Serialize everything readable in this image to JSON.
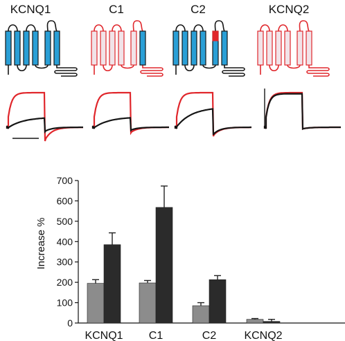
{
  "headers": [
    "KCNQ1",
    "C1",
    "C2",
    "KCNQ2"
  ],
  "colors": {
    "blue": "#2a9fd6",
    "red": "#e0262b",
    "black": "#151515",
    "pink_fill": "#f1e3e8",
    "bar_light": "#8c8c8c",
    "bar_dark": "#2b2b2b"
  },
  "topology": [
    {
      "construct": "KCNQ1",
      "segments": [
        "blue",
        "blue",
        "blue",
        "blue",
        "blue",
        "blue"
      ],
      "loops": "black",
      "tail": "black"
    },
    {
      "construct": "C1",
      "segments": [
        "pink",
        "pink",
        "pink",
        "pink",
        "pink",
        "blue"
      ],
      "loops": "red",
      "tail": "red"
    },
    {
      "construct": "C2",
      "segments": [
        "blue",
        "blue",
        "blue",
        "blue",
        "mixed",
        "blue"
      ],
      "loops": "black",
      "tail": "black"
    },
    {
      "construct": "KCNQ2",
      "segments": [
        "pink",
        "pink",
        "pink",
        "pink",
        "pink",
        "pink"
      ],
      "loops": "red",
      "tail": "red"
    }
  ],
  "traces": [
    {
      "construct": "KCNQ1",
      "black_rel": 0.32,
      "red_rel": 1.0,
      "tail_black": 0.22,
      "tail_red": 0.9,
      "scale_bar": true
    },
    {
      "construct": "C1",
      "black_rel": 0.33,
      "red_rel": 1.0,
      "tail_black": 0.12,
      "tail_red": 0.3,
      "scale_bar": false
    },
    {
      "construct": "C2",
      "black_rel": 0.6,
      "red_rel": 1.0,
      "tail_black": 0.45,
      "tail_red": 0.55,
      "scale_bar": false
    },
    {
      "construct": "KCNQ2",
      "black_rel": 0.97,
      "red_rel": 1.0,
      "tail_black": 0.02,
      "tail_red": 0.02,
      "scale_bar": false
    }
  ],
  "chart_data": {
    "type": "bar",
    "categories": [
      "KCNQ1",
      "C1",
      "C2",
      "KCNQ2"
    ],
    "series": [
      {
        "values": [
          195,
          197,
          85,
          18
        ],
        "errors": [
          18,
          12,
          15,
          4
        ]
      },
      {
        "values": [
          385,
          568,
          213,
          8
        ],
        "errors": [
          58,
          105,
          20,
          10
        ]
      }
    ],
    "ylabel": "Increase %",
    "ylim": [
      0,
      700
    ],
    "yticks": [
      0,
      100,
      200,
      300,
      400,
      500,
      600,
      700
    ]
  }
}
